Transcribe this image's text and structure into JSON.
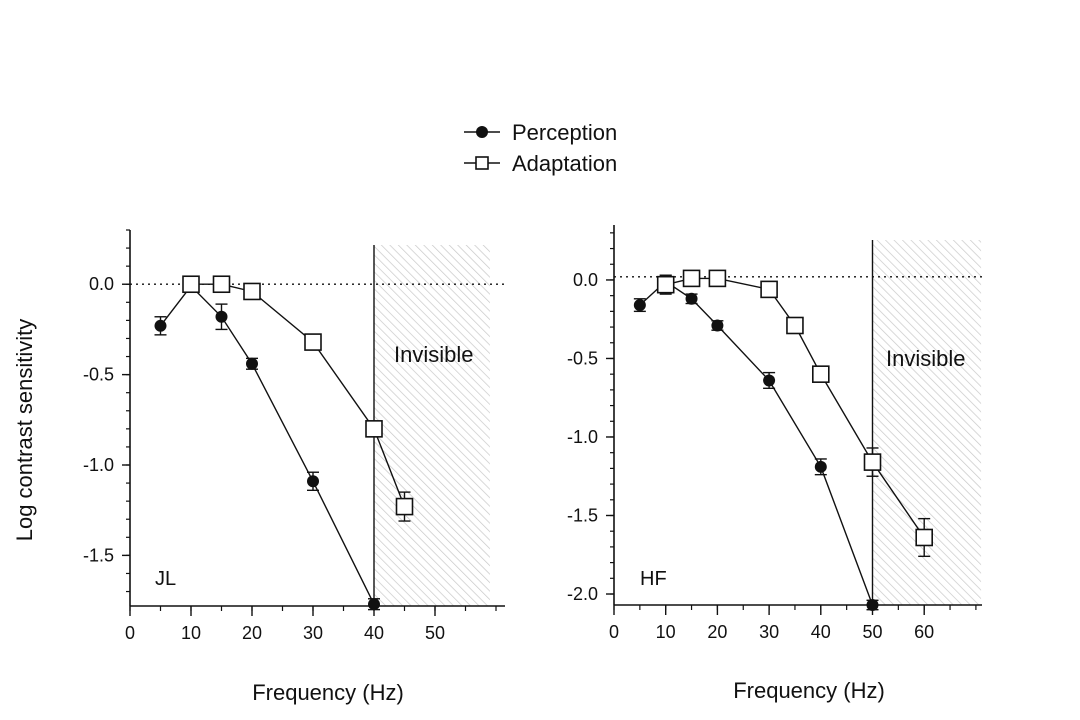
{
  "legend": {
    "entries": [
      {
        "label": "Perception",
        "marker": "filled-circle"
      },
      {
        "label": "Adaptation",
        "marker": "open-square"
      }
    ],
    "placement": "top-center"
  },
  "colors": {
    "line": "#111111",
    "hatch": "#c8c8c8",
    "background": "#ffffff"
  },
  "chart_data": [
    {
      "type": "line",
      "panel_label": "JL",
      "xlabel": "Frequency  (Hz)",
      "ylabel": "Log  contrast  sensitivity",
      "xlim": [
        0,
        60
      ],
      "ylim": [
        -1.78,
        0.3
      ],
      "xticks": [
        0,
        10,
        20,
        30,
        40,
        50
      ],
      "yticks": [
        0.0,
        -0.5,
        -1.0,
        -1.5
      ],
      "ytick_labels": [
        "0.0",
        "-0.5",
        "-1.0",
        "-1.5"
      ],
      "reference_line_y": 0.0,
      "cutoff_x": 40,
      "invisible_region": {
        "from_x": 40,
        "to_x": 59,
        "label": "Invisible"
      },
      "series": [
        {
          "name": "Perception",
          "marker": "filled-circle",
          "x": [
            5,
            10,
            15,
            20,
            30,
            40
          ],
          "y": [
            -0.23,
            -0.01,
            -0.18,
            -0.44,
            -1.09,
            -1.77
          ],
          "err": [
            0.05,
            0.03,
            0.07,
            0.03,
            0.05,
            0.03
          ]
        },
        {
          "name": "Adaptation",
          "marker": "open-square",
          "x": [
            10,
            15,
            20,
            30,
            40,
            45
          ],
          "y": [
            0.0,
            0.0,
            -0.04,
            -0.32,
            -0.8,
            -1.23
          ],
          "err": [
            0.02,
            0.02,
            0.03,
            0.04,
            0.04,
            0.08
          ]
        }
      ]
    },
    {
      "type": "line",
      "panel_label": "HF",
      "xlabel": "Frequency  (Hz)",
      "ylabel": "",
      "xlim": [
        0,
        70
      ],
      "ylim": [
        -2.07,
        0.35
      ],
      "xticks": [
        0,
        10,
        20,
        30,
        40,
        50,
        60
      ],
      "yticks": [
        0.0,
        -0.5,
        -1.0,
        -1.5,
        -2.0
      ],
      "ytick_labels": [
        "0.0",
        "-0.5",
        "-1.0",
        "-1.5",
        "-2.0"
      ],
      "reference_line_y": 0.02,
      "cutoff_x": 50,
      "invisible_region": {
        "from_x": 50,
        "to_x": 71,
        "label": "Invisible"
      },
      "series": [
        {
          "name": "Perception",
          "marker": "filled-circle",
          "x": [
            5,
            10,
            15,
            20,
            30,
            40,
            50
          ],
          "y": [
            -0.16,
            -0.01,
            -0.12,
            -0.29,
            -0.64,
            -1.19,
            -2.07
          ],
          "err": [
            0.04,
            0.04,
            0.03,
            0.03,
            0.05,
            0.05,
            0.03
          ]
        },
        {
          "name": "Adaptation",
          "marker": "open-square",
          "x": [
            10,
            15,
            20,
            30,
            35,
            40,
            50,
            60
          ],
          "y": [
            -0.03,
            0.01,
            0.01,
            -0.06,
            -0.29,
            -0.6,
            -1.16,
            -1.64
          ],
          "err": [
            0.06,
            0.02,
            0.02,
            0.04,
            0.03,
            0.04,
            0.09,
            0.12
          ]
        }
      ]
    }
  ]
}
